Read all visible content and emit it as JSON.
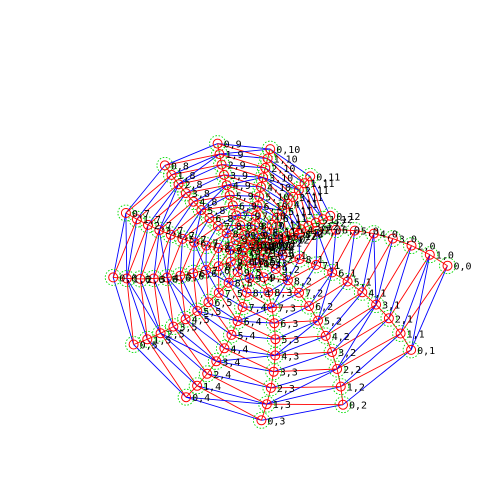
{
  "graph": {
    "rings": 11,
    "spokes": 13,
    "ring_start": 0,
    "spoke_start": 0,
    "label_format": "{ring},{spoke}",
    "edge_colors": {
      "radial": "#ff0000",
      "spiral": "#0000ff",
      "cross": "#ff0000"
    },
    "node_color": "#ff0000",
    "halo_color": "#00dd00",
    "label_color": "#000000"
  }
}
